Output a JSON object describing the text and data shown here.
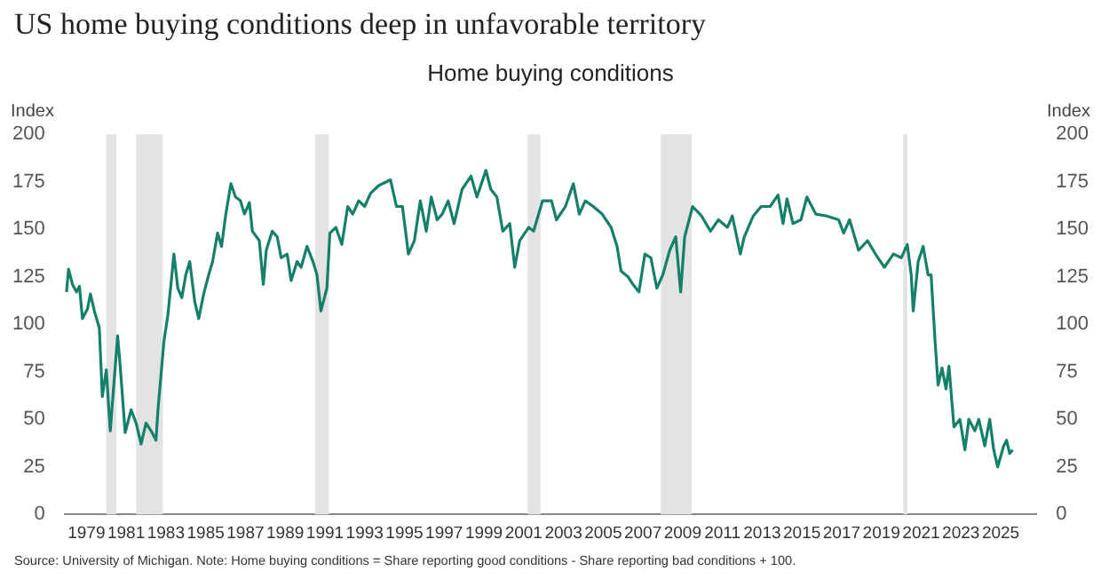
{
  "chart_data": {
    "type": "line",
    "title": "US home buying conditions deep in unfavorable territory",
    "subtitle": "Home buying conditions",
    "ylabel": "Index",
    "y2label": "Index",
    "annotations": [
      "Source: University of Michigan. Note: Home buying conditions = Share reporting good conditions - Share reporting bad conditions + 100."
    ],
    "x": [
      1978.0,
      1978.1,
      1978.3,
      1978.5,
      1978.65,
      1978.8,
      1979.05,
      1979.2,
      1979.4,
      1979.65,
      1979.8,
      1980.0,
      1980.2,
      1980.57,
      1980.7,
      1980.95,
      1981.25,
      1981.5,
      1981.75,
      1982.0,
      1982.25,
      1982.5,
      1982.6,
      1982.9,
      1983.1,
      1983.3,
      1983.4,
      1983.6,
      1983.8,
      1984.0,
      1984.2,
      1984.45,
      1984.65,
      1984.9,
      1985.15,
      1985.35,
      1985.6,
      1985.8,
      1986.0,
      1986.27,
      1986.5,
      1986.75,
      1986.95,
      1987.2,
      1987.35,
      1987.7,
      1987.9,
      1988.05,
      1988.35,
      1988.6,
      1988.8,
      1989.1,
      1989.3,
      1989.6,
      1989.8,
      1990.1,
      1990.4,
      1990.6,
      1990.8,
      1991.1,
      1991.25,
      1991.55,
      1991.85,
      1992.15,
      1992.4,
      1992.7,
      1993.0,
      1993.3,
      1993.7,
      1994.3,
      1994.6,
      1994.9,
      1995.2,
      1995.5,
      1995.8,
      1996.1,
      1996.35,
      1996.65,
      1996.9,
      1997.2,
      1997.5,
      1997.9,
      1998.35,
      1998.65,
      1999.1,
      1999.35,
      1999.65,
      1999.95,
      2000.3,
      2000.55,
      2000.8,
      2001.25,
      2001.5,
      2001.95,
      2002.4,
      2002.65,
      2003.1,
      2003.5,
      2003.8,
      2004.1,
      2004.5,
      2004.95,
      2005.4,
      2005.7,
      2005.9,
      2006.25,
      2006.5,
      2006.8,
      2007.1,
      2007.4,
      2007.7,
      2008.0,
      2008.35,
      2008.65,
      2008.9,
      2009.1,
      2009.5,
      2009.95,
      2010.4,
      2010.8,
      2011.25,
      2011.5,
      2011.9,
      2012.1,
      2012.55,
      2012.95,
      2013.4,
      2013.8,
      2014.05,
      2014.25,
      2014.55,
      2014.95,
      2015.25,
      2015.7,
      2016.25,
      2016.85,
      2017.1,
      2017.4,
      2017.85,
      2018.3,
      2018.7,
      2019.15,
      2019.6,
      2020.0,
      2020.3,
      2020.5,
      2020.6,
      2020.85,
      2021.1,
      2021.35,
      2021.5,
      2021.7,
      2021.85,
      2022.05,
      2022.25,
      2022.4,
      2022.65,
      2022.95,
      2023.2,
      2023.4,
      2023.7,
      2023.9,
      2024.2,
      2024.45,
      2024.65,
      2024.85,
      2025.15,
      2025.3,
      2025.45,
      2025.6
    ],
    "series": [
      {
        "color": "#14806a",
        "values": [
          117,
          129,
          121,
          117,
          120,
          103,
          108,
          116,
          107,
          98,
          62,
          76,
          44,
          94,
          78,
          43,
          55,
          48,
          37,
          48,
          44,
          39,
          55,
          91,
          105,
          126,
          137,
          119,
          114,
          126,
          133,
          112,
          103,
          116,
          126,
          133,
          148,
          141,
          157,
          174,
          167,
          165,
          158,
          164,
          149,
          144,
          121,
          139,
          149,
          146,
          135,
          137,
          123,
          133,
          130,
          141,
          133,
          126,
          107,
          119,
          148,
          151,
          142,
          162,
          158,
          165,
          162,
          169,
          173,
          176,
          162,
          162,
          137,
          144,
          165,
          149,
          167,
          155,
          158,
          165,
          153,
          171,
          178,
          167,
          181,
          171,
          167,
          149,
          153,
          130,
          144,
          151,
          149,
          165,
          165,
          155,
          162,
          174,
          158,
          165,
          162,
          158,
          151,
          141,
          128,
          125,
          121,
          117,
          137,
          135,
          119,
          126,
          139,
          146,
          117,
          146,
          162,
          157,
          149,
          155,
          151,
          157,
          137,
          146,
          157,
          162,
          162,
          168,
          153,
          166,
          153,
          155,
          167,
          158,
          157,
          155,
          148,
          155,
          139,
          144,
          137,
          130,
          137,
          135,
          142,
          126,
          107,
          133,
          141,
          126,
          126,
          91,
          68,
          77,
          66,
          78,
          46,
          50,
          34,
          50,
          44,
          50,
          36,
          50,
          34,
          25,
          36,
          39,
          32,
          34
        ]
      }
    ],
    "xlim": [
      1977.9,
      2026.8
    ],
    "xticks": [
      1979,
      1981,
      1983,
      1985,
      1987,
      1989,
      1991,
      1993,
      1995,
      1997,
      1999,
      2001,
      2003,
      2005,
      2007,
      2009,
      2011,
      2013,
      2015,
      2017,
      2019,
      2021,
      2023,
      2025
    ],
    "ylim": [
      0,
      200
    ],
    "yticks": [
      0,
      25,
      50,
      75,
      100,
      125,
      150,
      175,
      200
    ],
    "y2lim": [
      0,
      200
    ],
    "y2ticks": [
      0,
      25,
      50,
      75,
      100,
      125,
      150,
      175,
      200
    ],
    "bands": [
      {
        "axis": "x",
        "from": 1980.0,
        "to": 1980.5,
        "color": "#e3e3e3"
      },
      {
        "axis": "x",
        "from": 1981.5,
        "to": 1982.85,
        "color": "#e3e3e3"
      },
      {
        "axis": "x",
        "from": 1990.5,
        "to": 1991.2,
        "color": "#e3e3e3"
      },
      {
        "axis": "x",
        "from": 2001.2,
        "to": 2001.85,
        "color": "#e3e3e3"
      },
      {
        "axis": "x",
        "from": 2007.9,
        "to": 2009.45,
        "color": "#e3e3e3"
      },
      {
        "axis": "x",
        "from": 2020.1,
        "to": 2020.3,
        "color": "#e3e3e3"
      }
    ],
    "grid": false,
    "legend": false,
    "marker": "none",
    "line_style": "solid"
  }
}
